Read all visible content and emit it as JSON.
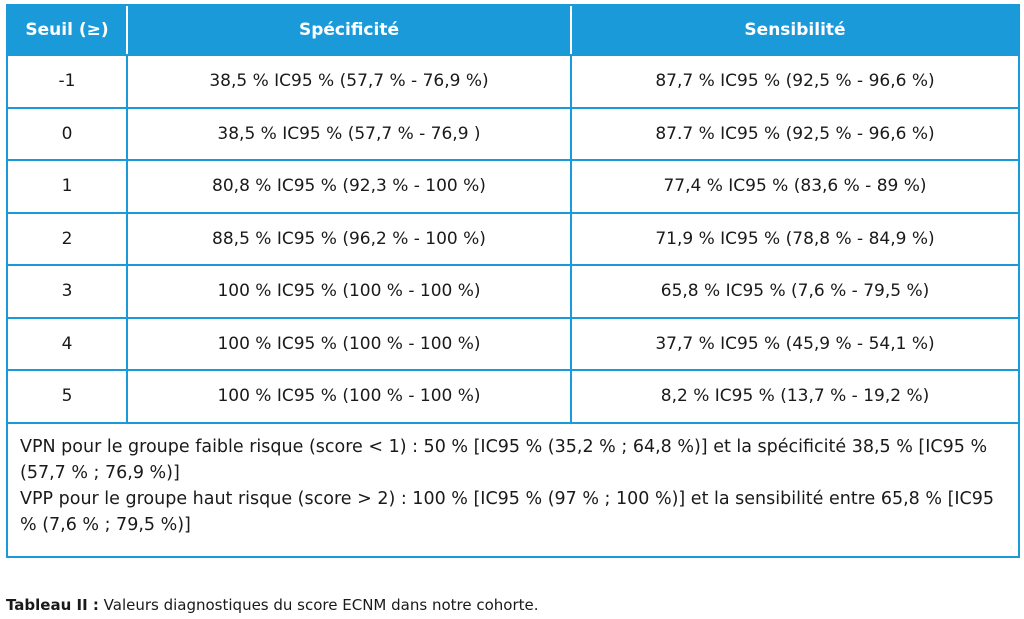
{
  "table": {
    "headers": [
      "Seuil (≥)",
      "Spécificité",
      "Sensibilité"
    ],
    "rows": [
      [
        "-1",
        "38,5 % IC95 % (57,7 % - 76,9 %)",
        "87,7 % IC95 % (92,5 % - 96,6 %)"
      ],
      [
        "0",
        "38,5 % IC95 % (57,7 % - 76,9 )",
        "87.7 % IC95 % (92,5 % - 96,6 %)"
      ],
      [
        "1",
        "80,8 % IC95 % (92,3 % - 100 %)",
        "77,4 % IC95 % (83,6 % - 89 %)"
      ],
      [
        "2",
        "88,5 % IC95 % (96,2 % - 100 %)",
        "71,9 % IC95 % (78,8 % - 84,9 %)"
      ],
      [
        "3",
        "100 % IC95 % (100 % - 100 %)",
        "65,8 % IC95 % (7,6 % - 79,5 %)"
      ],
      [
        "4",
        "100 % IC95 % (100 % - 100 %)",
        "37,7 % IC95 % (45,9 % - 54,1 %)"
      ],
      [
        "5",
        "100 % IC95 % (100 % - 100 %)",
        "8,2 % IC95 % (13,7 % - 19,2 %)"
      ]
    ],
    "note_lines": [
      "VPN pour le groupe faible risque (score < 1) : 50 % [IC95 % (35,2 % ; 64,8 %)] et la spécificité 38,5 % [IC95 % (57,7 % ; 76,9 %)]",
      "VPP pour le groupe haut risque (score > 2) : 100 % [IC95 % (97 % ; 100 %)] et la sensibilité entre 65,8 % [IC95 % (7,6 % ; 79,5 %)]"
    ]
  },
  "caption": {
    "label": "Tableau II :",
    "text": " Valeurs diagnostiques du score ECNM dans notre cohorte."
  },
  "colors": {
    "accent": "#1a9ad9",
    "header_text": "#ffffff"
  }
}
